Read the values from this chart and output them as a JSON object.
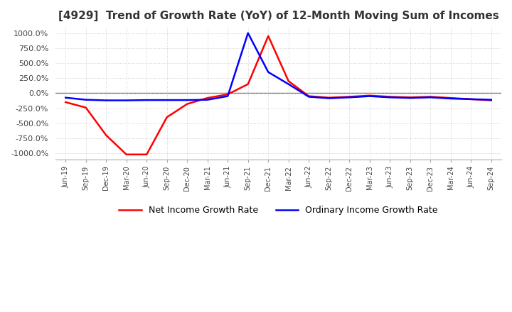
{
  "title": "[4929]  Trend of Growth Rate (YoY) of 12-Month Moving Sum of Incomes",
  "ylim": [
    -1100,
    1100
  ],
  "yticks": [
    -1000,
    -750,
    -500,
    -250,
    0,
    250,
    500,
    750,
    1000
  ],
  "ytick_labels": [
    "-1000.0%",
    "-750.0%",
    "-500.0%",
    "-250.0%",
    "0.0%",
    "250.0%",
    "500.0%",
    "750.0%",
    "1000.0%"
  ],
  "background_color": "#ffffff",
  "grid_color": "#c8c8c8",
  "ordinary_color": "#0000ff",
  "net_color": "#ff0000",
  "legend_ordinary": "Ordinary Income Growth Rate",
  "legend_net": "Net Income Growth Rate",
  "x_labels": [
    "Jun-19",
    "Sep-19",
    "Dec-19",
    "Mar-20",
    "Jun-20",
    "Sep-20",
    "Dec-20",
    "Mar-21",
    "Jun-21",
    "Sep-21",
    "Dec-21",
    "Mar-22",
    "Jun-22",
    "Sep-22",
    "Dec-22",
    "Mar-23",
    "Jun-23",
    "Sep-23",
    "Dec-23",
    "Mar-24",
    "Jun-24",
    "Sep-24"
  ],
  "ordinary_income": [
    -75,
    -110,
    -120,
    -120,
    -115,
    -115,
    -115,
    -110,
    -50,
    1000,
    350,
    150,
    -60,
    -85,
    -70,
    -50,
    -70,
    -80,
    -70,
    -90,
    -100,
    -110
  ],
  "net_income": [
    -150,
    -240,
    -700,
    -1020,
    -1020,
    -400,
    -180,
    -80,
    -20,
    150,
    950,
    200,
    -50,
    -75,
    -60,
    -40,
    -60,
    -70,
    -60,
    -80,
    -100,
    -120
  ]
}
